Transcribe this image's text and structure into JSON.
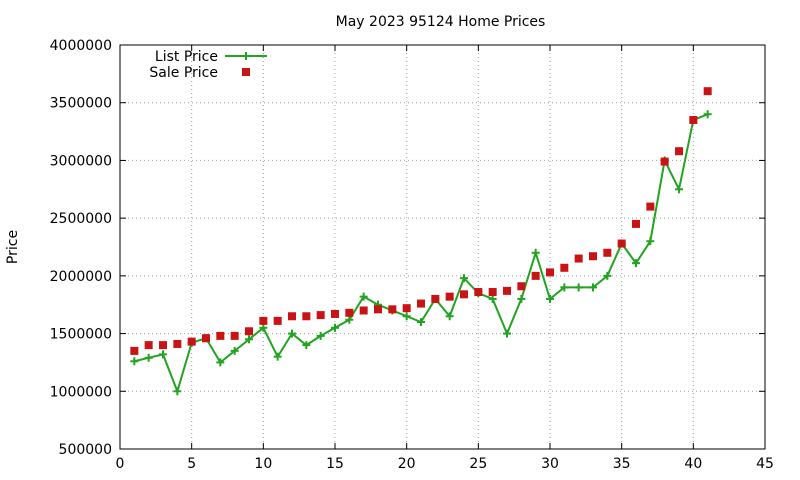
{
  "chart_data": {
    "type": "line",
    "title": "May 2023 95124 Home Prices",
    "xlabel": "",
    "ylabel": "Price",
    "xlim": [
      0,
      45
    ],
    "ylim": [
      500000,
      4000000
    ],
    "xticks": [
      0,
      5,
      10,
      15,
      20,
      25,
      30,
      35,
      40,
      45
    ],
    "yticks": [
      500000,
      1000000,
      1500000,
      2000000,
      2500000,
      3000000,
      3500000,
      4000000
    ],
    "grid": true,
    "legend_position": "top-left",
    "series": [
      {
        "name": "List Price",
        "style": "line-plus",
        "color": "#22a322",
        "x": [
          1,
          2,
          3,
          4,
          5,
          6,
          7,
          8,
          9,
          10,
          11,
          12,
          13,
          14,
          15,
          16,
          17,
          18,
          19,
          20,
          21,
          22,
          23,
          24,
          25,
          26,
          27,
          28,
          29,
          30,
          31,
          32,
          33,
          34,
          35,
          36,
          37,
          38,
          39,
          40,
          41
        ],
        "y": [
          1260000,
          1290000,
          1320000,
          1000000,
          1420000,
          1460000,
          1250000,
          1350000,
          1450000,
          1550000,
          1300000,
          1500000,
          1400000,
          1480000,
          1550000,
          1620000,
          1820000,
          1750000,
          1700000,
          1650000,
          1600000,
          1800000,
          1650000,
          1980000,
          1850000,
          1800000,
          1500000,
          1800000,
          2200000,
          1800000,
          1900000,
          1900000,
          1900000,
          2000000,
          2280000,
          2110000,
          2300000,
          3000000,
          2750000,
          3350000,
          3400000
        ]
      },
      {
        "name": "Sale Price",
        "style": "square",
        "color": "#c81414",
        "x": [
          1,
          2,
          3,
          4,
          5,
          6,
          7,
          8,
          9,
          10,
          11,
          12,
          13,
          14,
          15,
          16,
          17,
          18,
          19,
          20,
          21,
          22,
          23,
          24,
          25,
          26,
          27,
          28,
          29,
          30,
          31,
          32,
          33,
          34,
          35,
          36,
          37,
          38,
          39,
          40,
          41
        ],
        "y": [
          1350000,
          1400000,
          1400000,
          1410000,
          1430000,
          1460000,
          1480000,
          1480000,
          1520000,
          1610000,
          1610000,
          1650000,
          1650000,
          1660000,
          1670000,
          1680000,
          1700000,
          1710000,
          1710000,
          1720000,
          1760000,
          1800000,
          1820000,
          1840000,
          1860000,
          1860000,
          1870000,
          1910000,
          2000000,
          2030000,
          2070000,
          2150000,
          2170000,
          2200000,
          2280000,
          2450000,
          2600000,
          2990000,
          3080000,
          3350000,
          3600000
        ]
      }
    ]
  }
}
